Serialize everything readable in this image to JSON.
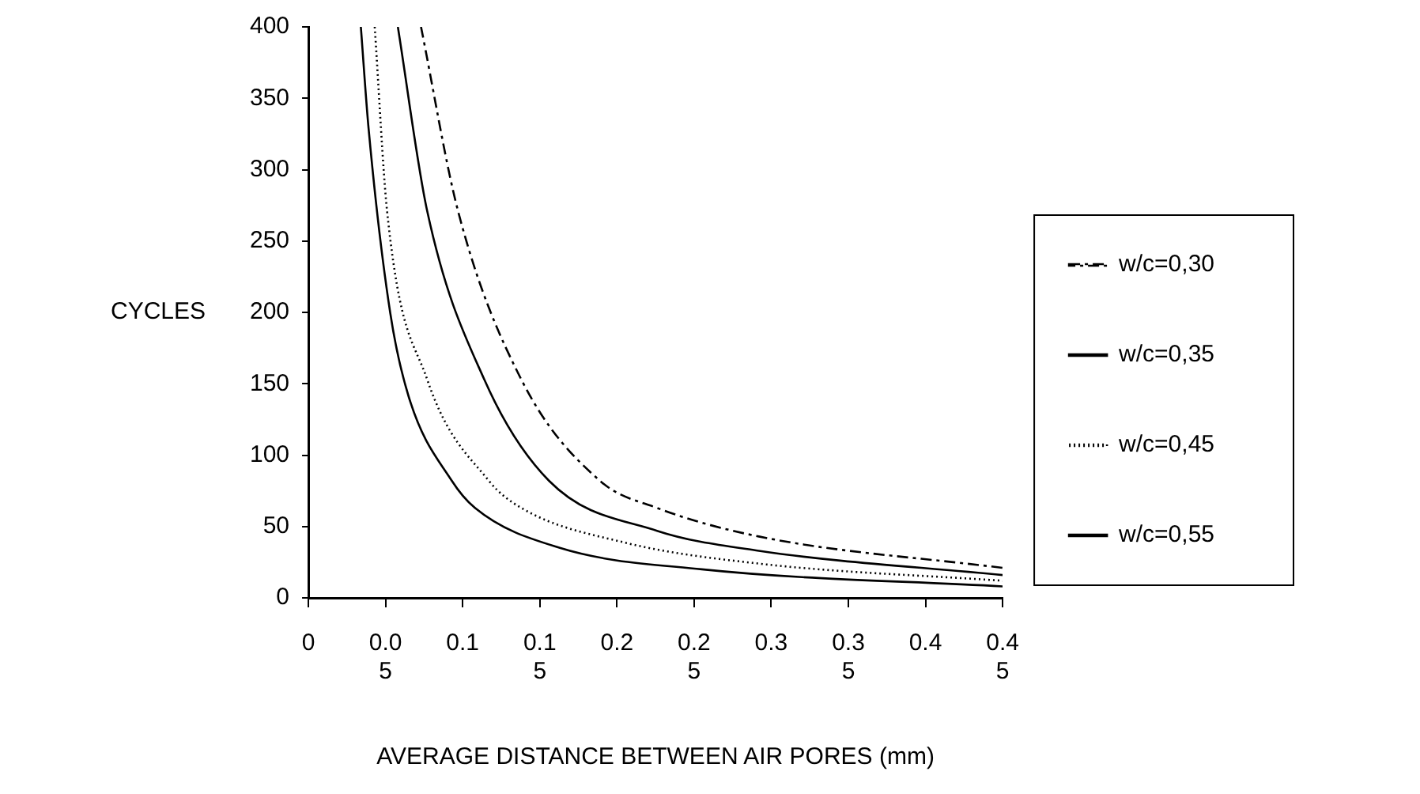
{
  "chart_data": {
    "type": "line",
    "xlabel": "AVERAGE DISTANCE BETWEEN AIR PORES (mm)",
    "ylabel": "CYCLES",
    "xlim": [
      0,
      0.45
    ],
    "xticks": [
      0,
      0.05,
      0.1,
      0.15,
      0.2,
      0.25,
      0.3,
      0.35,
      0.4,
      0.45
    ],
    "ylim": [
      0,
      400
    ],
    "yticks": [
      0,
      50,
      100,
      150,
      200,
      250,
      300,
      350,
      400
    ],
    "grid": false,
    "legend": "right",
    "marker": "none",
    "series": [
      {
        "name": "w/c=0,30",
        "color": "#000000",
        "line_style": "dashed",
        "x": [
          0.073,
          0.097,
          0.138,
          0.189,
          0.226,
          0.292,
          0.45
        ],
        "values": [
          400,
          271,
          153,
          82,
          63,
          43,
          21
        ]
      },
      {
        "name": "w/c=0,35",
        "color": "#000000",
        "line_style": "solid",
        "x": [
          0.058,
          0.077,
          0.114,
          0.156,
          0.226,
          0.292,
          0.45
        ],
        "values": [
          400,
          271,
          153,
          82,
          47,
          33,
          16
        ]
      },
      {
        "name": "w/c=0,45",
        "color": "#000000",
        "line_style": "dotted",
        "x": [
          0.043,
          0.051,
          0.077,
          0.117,
          0.138,
          0.204,
          0.292,
          0.45
        ],
        "values": [
          400,
          271,
          153,
          82,
          63,
          39,
          24,
          12
        ]
      },
      {
        "name": "w/c=0,55",
        "color": "#000000",
        "line_style": "solid",
        "x": [
          0.034,
          0.039,
          0.053,
          0.065,
          0.093,
          0.108,
          0.163,
          0.255,
          0.45
        ],
        "values": [
          400,
          329,
          200,
          141,
          82,
          63,
          35,
          20,
          8
        ]
      }
    ]
  }
}
